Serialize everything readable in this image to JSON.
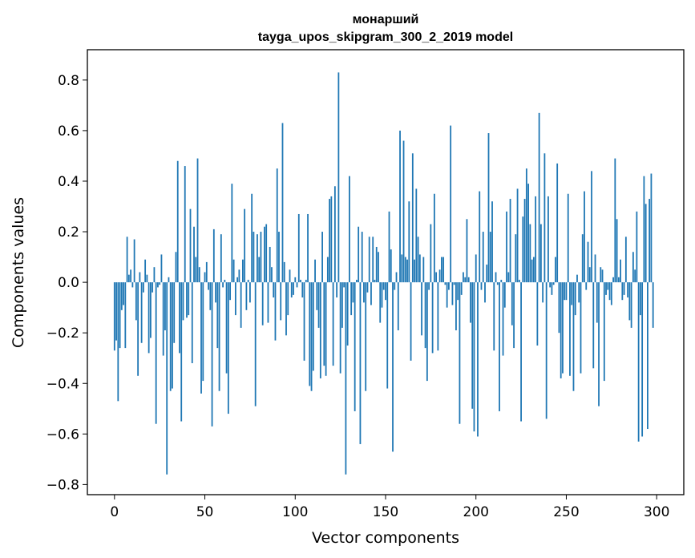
{
  "chart_data": {
    "type": "bar",
    "title": "монарший",
    "subtitle": "tayga_upos_skipgram_300_2_2019 model",
    "xlabel": "Vector components",
    "ylabel": "Components values",
    "xlim": [
      -15,
      315
    ],
    "ylim": [
      -0.84,
      0.92
    ],
    "xticks": [
      0,
      50,
      100,
      150,
      200,
      250,
      300
    ],
    "xtick_labels": [
      "0",
      "50",
      "100",
      "150",
      "200",
      "250",
      "300"
    ],
    "yticks": [
      -0.8,
      -0.6,
      -0.4,
      -0.2,
      0.0,
      0.2,
      0.4,
      0.6,
      0.8
    ],
    "ytick_labels": [
      "−0.8",
      "−0.6",
      "−0.4",
      "−0.2",
      "0.0",
      "0.2",
      "0.4",
      "0.6",
      "0.8"
    ],
    "color": "#1f77b4",
    "values": [
      -0.27,
      -0.23,
      -0.47,
      -0.26,
      -0.11,
      -0.09,
      -0.26,
      0.18,
      0.03,
      0.05,
      -0.02,
      0.17,
      -0.15,
      -0.37,
      0.04,
      -0.24,
      -0.04,
      0.09,
      0.03,
      -0.28,
      -0.22,
      -0.04,
      0.06,
      -0.56,
      -0.02,
      -0.01,
      0.11,
      -0.29,
      -0.19,
      -0.76,
      0.02,
      -0.43,
      -0.42,
      -0.24,
      0.12,
      0.48,
      -0.28,
      -0.55,
      -0.15,
      0.46,
      -0.14,
      -0.13,
      0.29,
      -0.32,
      0.22,
      0.1,
      0.49,
      0.06,
      -0.44,
      -0.39,
      0.04,
      0.08,
      -0.03,
      -0.11,
      -0.57,
      0.21,
      -0.08,
      -0.26,
      -0.43,
      0.19,
      -0.02,
      0.01,
      -0.36,
      -0.52,
      -0.07,
      0.39,
      0.09,
      -0.13,
      0.02,
      0.05,
      -0.18,
      0.09,
      0.29,
      -0.11,
      0.01,
      -0.08,
      0.35,
      0.2,
      -0.49,
      0.19,
      0.1,
      0.2,
      -0.17,
      0.22,
      0.23,
      -0.16,
      0.14,
      0.06,
      -0.06,
      -0.23,
      0.45,
      0.2,
      -0.15,
      0.63,
      0.08,
      -0.21,
      -0.13,
      0.05,
      -0.06,
      -0.05,
      0.02,
      -0.02,
      0.27,
      0.01,
      -0.06,
      -0.31,
      0.01,
      0.27,
      -0.41,
      -0.43,
      -0.35,
      0.09,
      -0.11,
      -0.18,
      -0.38,
      0.2,
      -0.33,
      -0.37,
      0.1,
      0.33,
      0.34,
      -0.33,
      0.38,
      -0.06,
      0.83,
      -0.36,
      -0.18,
      -0.02,
      -0.76,
      -0.25,
      0.42,
      -0.13,
      -0.08,
      -0.51,
      0.01,
      0.22,
      -0.64,
      0.2,
      -0.08,
      -0.43,
      -0.04,
      0.18,
      -0.09,
      0.18,
      0.01,
      0.14,
      0.12,
      -0.16,
      -0.1,
      -0.03,
      -0.07,
      -0.42,
      0.28,
      0.13,
      -0.67,
      -0.03,
      0.04,
      -0.19,
      0.6,
      0.11,
      0.56,
      0.1,
      0.09,
      0.32,
      -0.31,
      0.51,
      0.09,
      0.37,
      0.18,
      0.11,
      -0.21,
      0.1,
      -0.26,
      -0.39,
      -0.03,
      0.23,
      -0.28,
      0.35,
      0.04,
      -0.27,
      0.05,
      0.1,
      0.1,
      -0.01,
      -0.1,
      -0.03,
      0.62,
      -0.09,
      -0.01,
      -0.19,
      -0.07,
      -0.56,
      -0.05,
      0.04,
      0.02,
      0.25,
      0.02,
      -0.16,
      -0.5,
      -0.59,
      0.11,
      -0.61,
      0.36,
      -0.03,
      0.2,
      -0.08,
      0.07,
      0.59,
      0.2,
      0.32,
      -0.27,
      0.04,
      -0.01,
      -0.51,
      0.01,
      -0.29,
      -0.1,
      0.28,
      0.04,
      0.33,
      -0.17,
      -0.26,
      0.19,
      0.37,
      0.01,
      -0.55,
      0.26,
      0.33,
      0.45,
      0.39,
      0.23,
      0.09,
      0.1,
      0.34,
      -0.25,
      0.67,
      0.23,
      -0.08,
      0.51,
      -0.54,
      0.34,
      -0.02,
      -0.05,
      -0.01,
      0.1,
      0.47,
      -0.2,
      -0.38,
      -0.36,
      -0.07,
      -0.07,
      0.35,
      -0.37,
      -0.09,
      -0.43,
      -0.13,
      0.03,
      -0.08,
      -0.36,
      0.19,
      0.36,
      -0.03,
      0.16,
      0.06,
      0.44,
      -0.34,
      0.11,
      -0.16,
      -0.49,
      0.06,
      0.05,
      -0.39,
      -0.05,
      -0.03,
      -0.07,
      -0.09,
      0.02,
      0.49,
      0.25,
      0.02,
      0.09,
      -0.07,
      -0.05,
      0.18,
      -0.06,
      -0.15,
      -0.18,
      0.12,
      0.05,
      0.28,
      -0.63,
      -0.13,
      -0.61,
      0.42,
      0.31,
      -0.58,
      0.33,
      0.43,
      -0.18
    ]
  }
}
